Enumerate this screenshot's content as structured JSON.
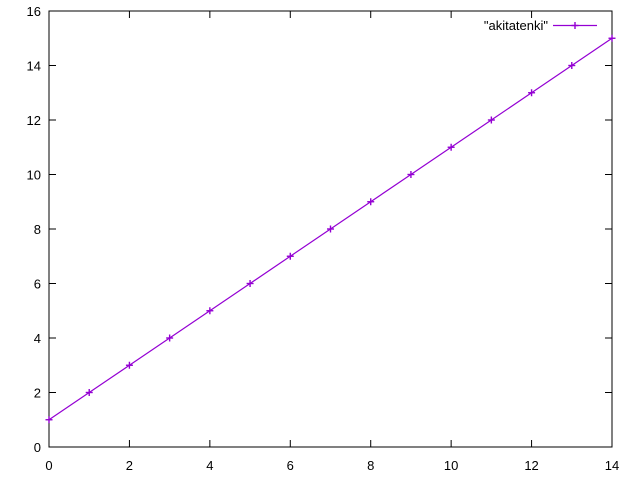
{
  "chart_data": {
    "type": "line",
    "title": "",
    "xlabel": "",
    "ylabel": "",
    "xlim": [
      0,
      14
    ],
    "ylim": [
      0,
      16
    ],
    "xticks": [
      0,
      2,
      4,
      6,
      8,
      10,
      12,
      14
    ],
    "yticks": [
      0,
      2,
      4,
      6,
      8,
      10,
      12,
      14,
      16
    ],
    "grid": false,
    "legend_position": "top-right",
    "background_color": "#ffffff",
    "border_color": "#000000",
    "text_color": "#000000",
    "series": [
      {
        "name": "\"akitatenki\"",
        "color": "#9400D3",
        "marker": "plus",
        "x": [
          0,
          1,
          2,
          3,
          4,
          5,
          6,
          7,
          8,
          9,
          10,
          11,
          12,
          13,
          14
        ],
        "y": [
          1,
          2,
          3,
          4,
          5,
          6,
          7,
          8,
          9,
          10,
          11,
          12,
          13,
          14,
          15
        ]
      }
    ]
  }
}
